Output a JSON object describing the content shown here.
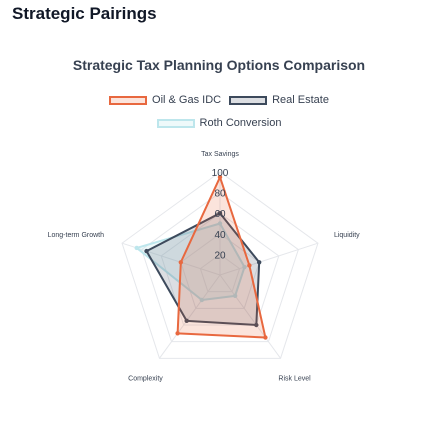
{
  "page": {
    "heading": "Strategic Pairings"
  },
  "chart_data": {
    "type": "radar",
    "title": "Strategic Tax Planning Options Comparison",
    "axes": [
      "Tax Savings",
      "Liquidity",
      "Risk Level",
      "Complexity",
      "Long-term Growth"
    ],
    "scale": {
      "min": 0,
      "max": 100,
      "ticks": [
        20,
        40,
        60,
        80,
        100
      ]
    },
    "series": [
      {
        "name": "Oil & Gas IDC",
        "values": [
          95,
          30,
          75,
          70,
          40
        ],
        "color": "#e8683f",
        "fill": "rgba(232,104,63,0.18)"
      },
      {
        "name": "Real Estate",
        "values": [
          60,
          40,
          60,
          55,
          75
        ],
        "color": "#3d4a5c",
        "fill": "rgba(61,74,92,0.18)"
      },
      {
        "name": "Roth Conversion",
        "values": [
          50,
          25,
          25,
          30,
          85
        ],
        "color": "#bde6ec",
        "fill": "rgba(189,230,236,0.25)"
      }
    ],
    "legend_position": "top"
  }
}
